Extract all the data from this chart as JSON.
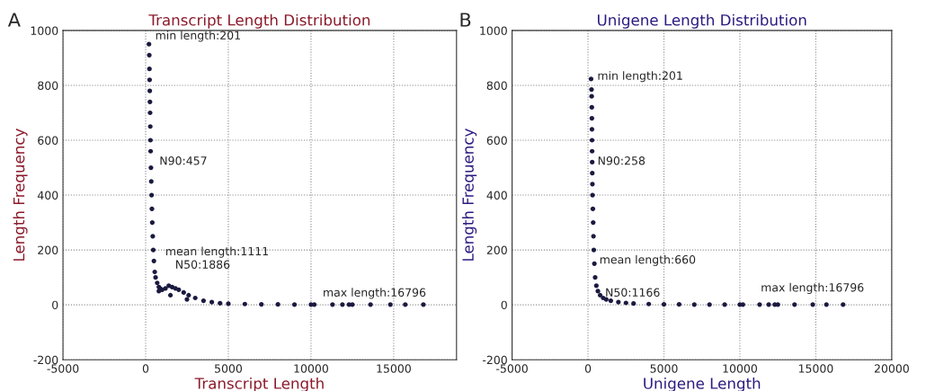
{
  "chart_data": [
    {
      "type": "scatter",
      "title": "Transcript Length Distribution",
      "xlabel": "Transcript Length",
      "ylabel": "Length Frequency",
      "xlim": [
        -5000,
        18800
      ],
      "xticks": [
        -5000,
        0,
        5000,
        10000,
        15000
      ],
      "ylim": [
        -200,
        1000
      ],
      "yticks": [
        -200,
        0,
        200,
        400,
        600,
        800,
        1000
      ],
      "grid": true,
      "marker": "circle",
      "series": [
        {
          "color": "#1a1a40",
          "x": [
            201,
            220,
            230,
            240,
            250,
            260,
            270,
            280,
            290,
            300,
            320,
            340,
            360,
            380,
            400,
            430,
            460,
            500,
            550,
            600,
            700,
            800,
            800,
            900,
            1000,
            1200,
            1400,
            1500,
            1600,
            1800,
            2000,
            2300,
            2500,
            2600,
            3000,
            3500,
            4000,
            4500,
            5000,
            6000,
            7000,
            8000,
            9000,
            10000,
            10200,
            11300,
            11900,
            12300,
            12500,
            13600,
            14800,
            15700,
            16796
          ],
          "values": [
            950,
            910,
            860,
            820,
            780,
            740,
            700,
            650,
            600,
            560,
            500,
            450,
            400,
            350,
            300,
            250,
            200,
            160,
            120,
            100,
            80,
            65,
            50,
            58,
            55,
            60,
            70,
            35,
            65,
            60,
            55,
            45,
            20,
            35,
            25,
            15,
            10,
            6,
            4,
            3,
            2,
            2,
            1,
            1,
            1,
            1,
            1,
            1,
            1,
            1,
            1,
            1,
            1
          ]
        }
      ],
      "annotations": [
        "A",
        {
          "text": "min length:201",
          "x": 201,
          "y": 950
        },
        "N90:457",
        "mean length:1111",
        "N50:1886",
        "max length:16796"
      ]
    },
    {
      "type": "scatter",
      "title": "Unigene Length Distribution",
      "xlabel": "Unigene Length",
      "ylabel": "Length Frequency",
      "xlim": [
        -5000,
        20000
      ],
      "xticks": [
        -5000,
        0,
        5000,
        10000,
        15000,
        20000
      ],
      "ylim": [
        -200,
        1000
      ],
      "yticks": [
        -200,
        0,
        200,
        400,
        600,
        800,
        1000
      ],
      "grid": true,
      "marker": "circle",
      "series": [
        {
          "color": "#1a1a40",
          "x": [
            201,
            230,
            240,
            250,
            255,
            260,
            265,
            270,
            275,
            280,
            290,
            300,
            320,
            340,
            360,
            380,
            420,
            470,
            550,
            650,
            800,
            1000,
            1200,
            1500,
            2000,
            2500,
            3000,
            4000,
            5000,
            6000,
            7000,
            8000,
            9000,
            10000,
            10200,
            11300,
            11900,
            12300,
            12500,
            13600,
            14800,
            15700,
            16796
          ],
          "values": [
            823,
            785,
            760,
            720,
            680,
            640,
            600,
            560,
            520,
            480,
            440,
            400,
            350,
            300,
            250,
            200,
            150,
            100,
            70,
            50,
            35,
            25,
            20,
            15,
            10,
            7,
            5,
            3,
            2,
            2,
            1,
            1,
            1,
            1,
            1,
            1,
            1,
            1,
            1,
            1,
            1,
            1,
            1
          ]
        }
      ],
      "annotations": [
        "B",
        {
          "text": "min length:201",
          "x": 201,
          "y": 823
        },
        "N90:258",
        "mean length:660",
        "N50:1166",
        "max length:16796"
      ]
    }
  ]
}
